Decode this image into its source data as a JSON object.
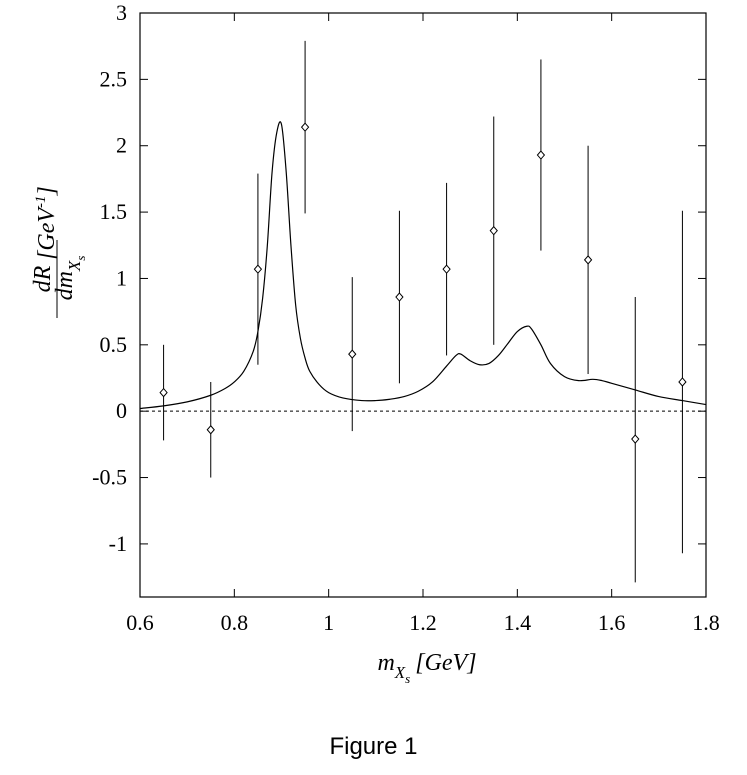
{
  "caption": "Figure 1",
  "chart_data": {
    "type": "scatter",
    "xlabel": {
      "main": "m",
      "sub": "X",
      "subsub": "s",
      "units": "[GeV]"
    },
    "ylabel": {
      "numerator": "dR",
      "denominator_main": "dm",
      "denominator_sub": "X",
      "denominator_subsub": "s",
      "units": "[GeV",
      "units_sup": "-1",
      "units_close": "]"
    },
    "xlim": [
      0.6,
      1.8
    ],
    "ylim": [
      -1.4,
      3
    ],
    "xticks": [
      "0.6",
      "0.8",
      "1",
      "1.2",
      "1.4",
      "1.6",
      "1.8"
    ],
    "yticks": [
      "-1",
      "-0.5",
      "0",
      "0.5",
      "1",
      "1.5",
      "2",
      "2.5",
      "3"
    ],
    "reference_line": {
      "y": 0,
      "style": "dashed"
    },
    "points": [
      {
        "x": 0.65,
        "y": 0.14,
        "ylow": -0.22,
        "yhigh": 0.5
      },
      {
        "x": 0.75,
        "y": -0.14,
        "ylow": -0.5,
        "yhigh": 0.22
      },
      {
        "x": 0.85,
        "y": 1.07,
        "ylow": 0.35,
        "yhigh": 1.79
      },
      {
        "x": 0.95,
        "y": 2.14,
        "ylow": 1.49,
        "yhigh": 2.79
      },
      {
        "x": 1.05,
        "y": 0.43,
        "ylow": -0.15,
        "yhigh": 1.01
      },
      {
        "x": 1.15,
        "y": 0.86,
        "ylow": 0.21,
        "yhigh": 1.51
      },
      {
        "x": 1.25,
        "y": 1.07,
        "ylow": 0.42,
        "yhigh": 1.72
      },
      {
        "x": 1.35,
        "y": 1.36,
        "ylow": 0.5,
        "yhigh": 2.22
      },
      {
        "x": 1.45,
        "y": 1.93,
        "ylow": 1.21,
        "yhigh": 2.65
      },
      {
        "x": 1.55,
        "y": 1.14,
        "ylow": 0.28,
        "yhigh": 2.0
      },
      {
        "x": 1.65,
        "y": -0.21,
        "ylow": -1.29,
        "yhigh": 0.86
      },
      {
        "x": 1.75,
        "y": 0.22,
        "ylow": -1.07,
        "yhigh": 1.51
      }
    ],
    "curve": {
      "x": [
        0.6,
        0.65,
        0.7,
        0.75,
        0.78,
        0.8,
        0.82,
        0.84,
        0.85,
        0.86,
        0.87,
        0.88,
        0.89,
        0.9,
        0.91,
        0.92,
        0.93,
        0.94,
        0.95,
        0.96,
        0.98,
        1.0,
        1.03,
        1.07,
        1.1,
        1.13,
        1.16,
        1.19,
        1.22,
        1.25,
        1.27,
        1.28,
        1.3,
        1.32,
        1.34,
        1.36,
        1.38,
        1.4,
        1.42,
        1.43,
        1.45,
        1.47,
        1.5,
        1.53,
        1.56,
        1.58,
        1.6,
        1.65,
        1.7,
        1.75,
        1.8
      ],
      "y": [
        0.02,
        0.04,
        0.07,
        0.12,
        0.17,
        0.22,
        0.3,
        0.45,
        0.6,
        0.85,
        1.25,
        1.8,
        2.1,
        2.16,
        1.8,
        1.25,
        0.8,
        0.55,
        0.4,
        0.3,
        0.2,
        0.14,
        0.1,
        0.08,
        0.08,
        0.09,
        0.11,
        0.15,
        0.22,
        0.34,
        0.42,
        0.43,
        0.38,
        0.35,
        0.36,
        0.42,
        0.51,
        0.6,
        0.64,
        0.62,
        0.5,
        0.36,
        0.26,
        0.23,
        0.24,
        0.23,
        0.21,
        0.16,
        0.11,
        0.08,
        0.05
      ]
    }
  }
}
